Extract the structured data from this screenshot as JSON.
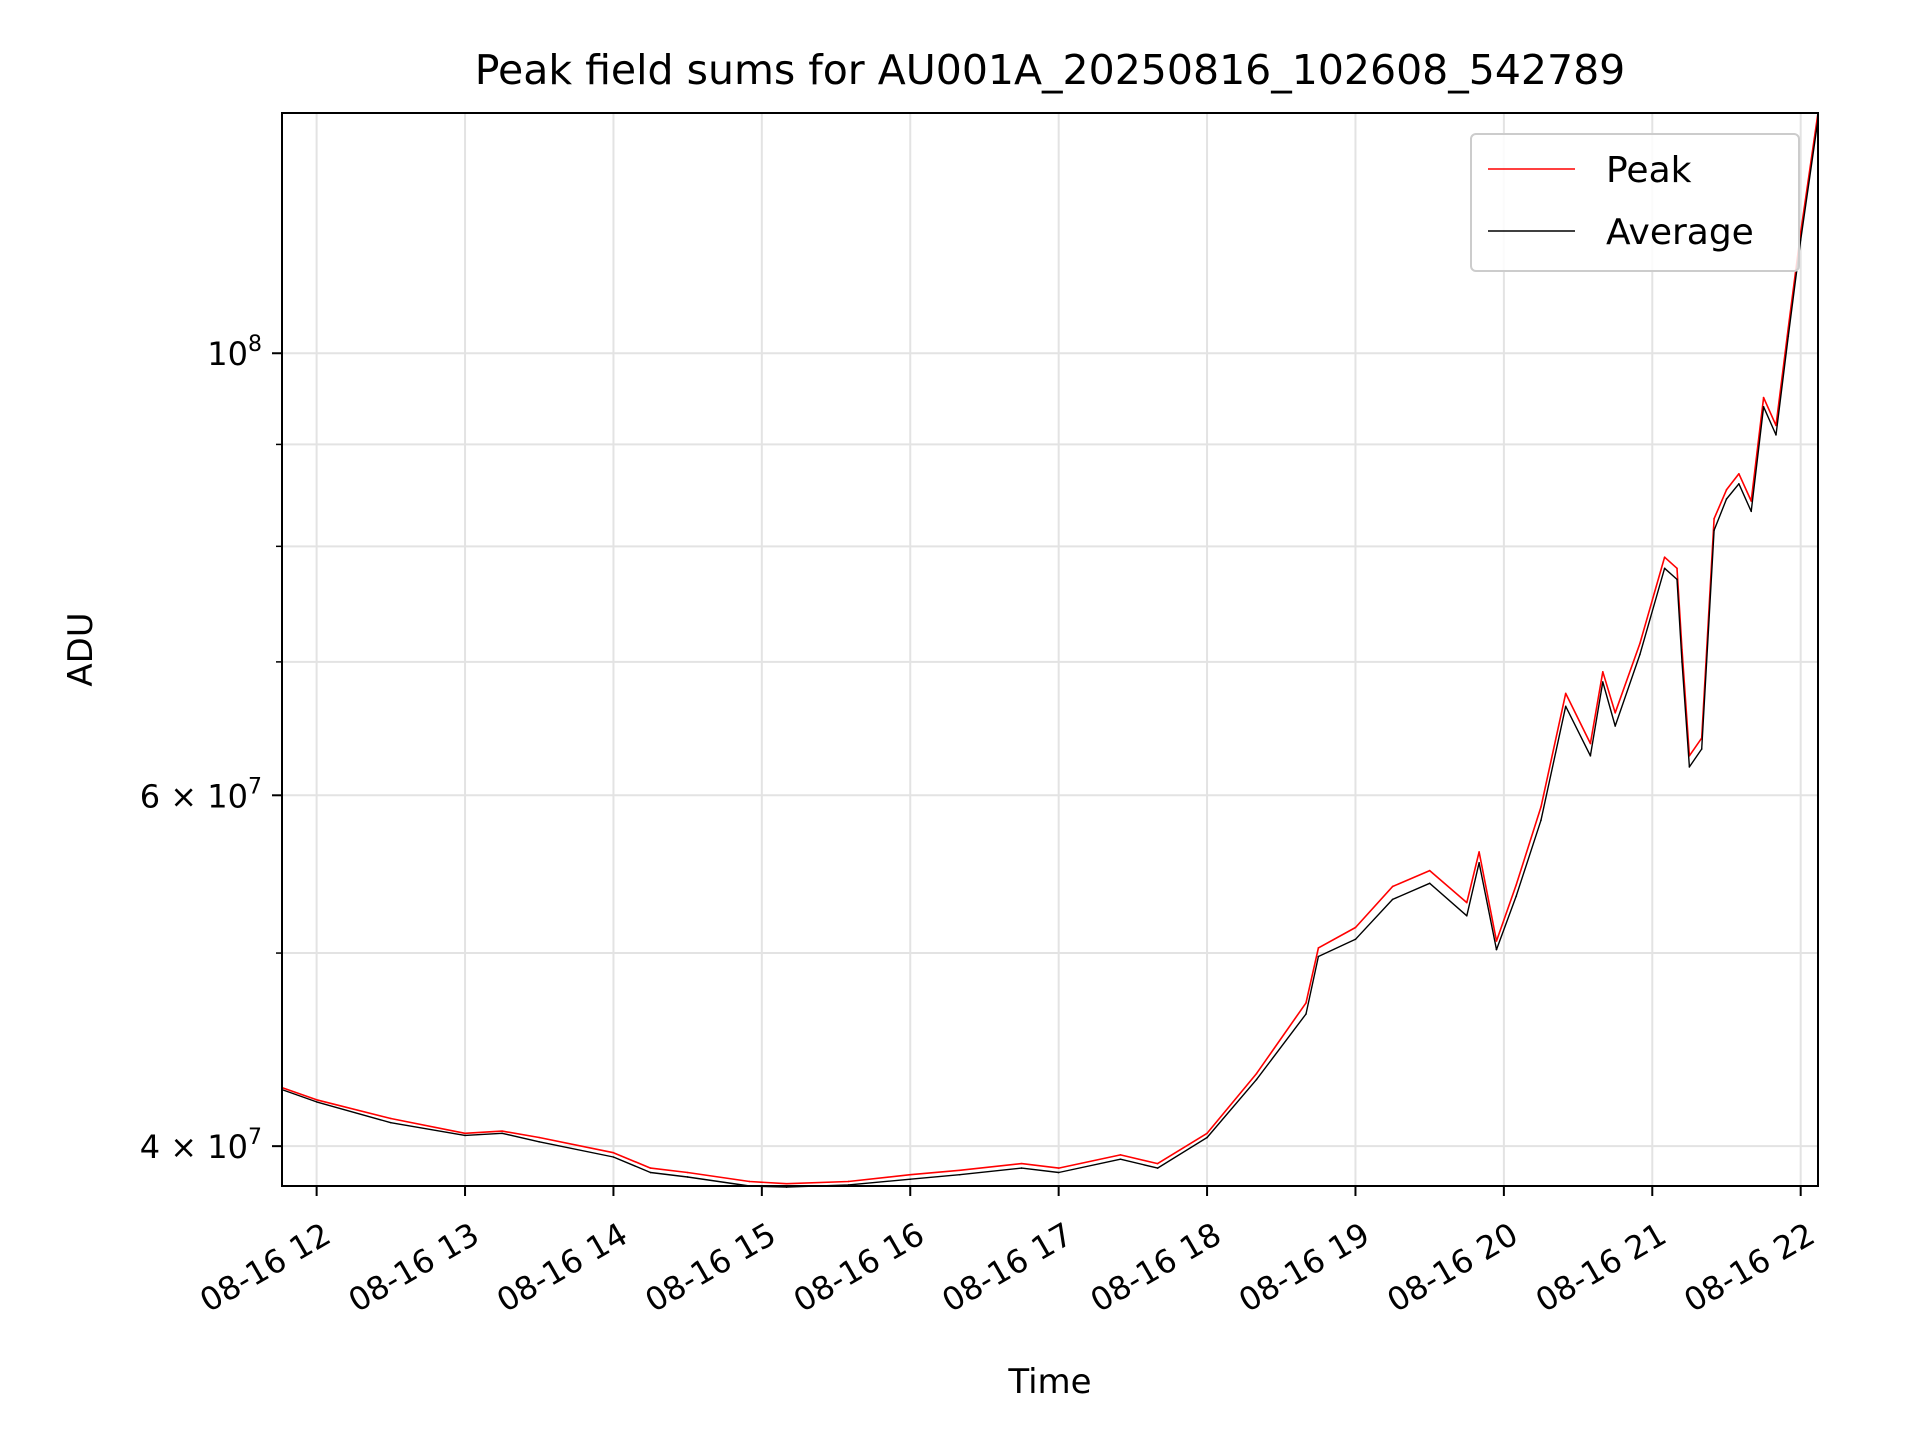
{
  "chart_data": {
    "type": "line",
    "title": "Peak field sums for AU001A_20250816_102608_542789",
    "xlabel": "Time",
    "ylabel": "ADU",
    "x_scale": "time",
    "y_scale": "log",
    "xlim": [
      "2025-08-16 11:46",
      "2025-08-16 22:07"
    ],
    "ylim": [
      38200000,
      132000000
    ],
    "grid": true,
    "legend_position": "top-right",
    "x_ticks": [
      {
        "value": "2025-08-16 12:00",
        "label": "08-16 12"
      },
      {
        "value": "2025-08-16 13:00",
        "label": "08-16 13"
      },
      {
        "value": "2025-08-16 14:00",
        "label": "08-16 14"
      },
      {
        "value": "2025-08-16 15:00",
        "label": "08-16 15"
      },
      {
        "value": "2025-08-16 16:00",
        "label": "08-16 16"
      },
      {
        "value": "2025-08-16 17:00",
        "label": "08-16 17"
      },
      {
        "value": "2025-08-16 18:00",
        "label": "08-16 18"
      },
      {
        "value": "2025-08-16 19:00",
        "label": "08-16 19"
      },
      {
        "value": "2025-08-16 20:00",
        "label": "08-16 20"
      },
      {
        "value": "2025-08-16 21:00",
        "label": "08-16 21"
      },
      {
        "value": "2025-08-16 22:00",
        "label": "08-16 22"
      }
    ],
    "y_ticks": [
      {
        "value": 40000000,
        "base": "4 × 10",
        "exp": "7"
      },
      {
        "value": 60000000,
        "base": "6 × 10",
        "exp": "7"
      },
      {
        "value": 100000000,
        "base": "10",
        "exp": "8"
      }
    ],
    "y_minor_ticks": [
      50000000,
      70000000,
      80000000,
      90000000
    ],
    "series": [
      {
        "name": "Peak",
        "color": "#ff0000",
        "x": [
          "2025-08-16 11:46",
          "2025-08-16 12:00",
          "2025-08-16 12:30",
          "2025-08-16 13:00",
          "2025-08-16 13:15",
          "2025-08-16 13:30",
          "2025-08-16 14:00",
          "2025-08-16 14:15",
          "2025-08-16 14:30",
          "2025-08-16 14:55",
          "2025-08-16 15:10",
          "2025-08-16 15:35",
          "2025-08-16 16:00",
          "2025-08-16 16:20",
          "2025-08-16 16:45",
          "2025-08-16 17:00",
          "2025-08-16 17:25",
          "2025-08-16 17:40",
          "2025-08-16 18:00",
          "2025-08-16 18:20",
          "2025-08-16 18:40",
          "2025-08-16 18:45",
          "2025-08-16 19:00",
          "2025-08-16 19:15",
          "2025-08-16 19:30",
          "2025-08-16 19:45",
          "2025-08-16 19:50",
          "2025-08-16 19:57",
          "2025-08-16 20:05",
          "2025-08-16 20:15",
          "2025-08-16 20:25",
          "2025-08-16 20:35",
          "2025-08-16 20:40",
          "2025-08-16 20:45",
          "2025-08-16 20:55",
          "2025-08-16 21:05",
          "2025-08-16 21:10",
          "2025-08-16 21:12",
          "2025-08-16 21:15",
          "2025-08-16 21:20",
          "2025-08-16 21:25",
          "2025-08-16 21:30",
          "2025-08-16 21:35",
          "2025-08-16 21:40",
          "2025-08-16 21:45",
          "2025-08-16 21:50",
          "2025-08-16 21:55",
          "2025-08-16 22:00",
          "2025-08-16 22:07"
        ],
        "values": [
          42800000,
          42200000,
          41300000,
          40600000,
          40700000,
          40400000,
          39700000,
          39000000,
          38800000,
          38400000,
          38300000,
          38400000,
          38700000,
          38900000,
          39200000,
          39000000,
          39600000,
          39200000,
          40600000,
          43500000,
          47200000,
          50300000,
          51500000,
          54000000,
          55000000,
          53000000,
          56200000,
          50700000,
          54100000,
          59200000,
          67500000,
          63700000,
          69200000,
          66000000,
          71500000,
          79000000,
          78000000,
          71000000,
          62800000,
          64100000,
          82600000,
          85400000,
          87000000,
          84300000,
          95000000,
          92000000,
          103000000,
          115000000,
          132000000
        ]
      },
      {
        "name": "Average",
        "color": "#000000",
        "x": [
          "2025-08-16 11:46",
          "2025-08-16 12:00",
          "2025-08-16 12:30",
          "2025-08-16 13:00",
          "2025-08-16 13:15",
          "2025-08-16 13:30",
          "2025-08-16 14:00",
          "2025-08-16 14:15",
          "2025-08-16 14:30",
          "2025-08-16 14:55",
          "2025-08-16 15:10",
          "2025-08-16 15:35",
          "2025-08-16 16:00",
          "2025-08-16 16:20",
          "2025-08-16 16:45",
          "2025-08-16 17:00",
          "2025-08-16 17:25",
          "2025-08-16 17:40",
          "2025-08-16 18:00",
          "2025-08-16 18:20",
          "2025-08-16 18:40",
          "2025-08-16 18:45",
          "2025-08-16 19:00",
          "2025-08-16 19:15",
          "2025-08-16 19:30",
          "2025-08-16 19:45",
          "2025-08-16 19:50",
          "2025-08-16 19:57",
          "2025-08-16 20:05",
          "2025-08-16 20:15",
          "2025-08-16 20:25",
          "2025-08-16 20:35",
          "2025-08-16 20:40",
          "2025-08-16 20:45",
          "2025-08-16 20:55",
          "2025-08-16 21:05",
          "2025-08-16 21:10",
          "2025-08-16 21:12",
          "2025-08-16 21:15",
          "2025-08-16 21:20",
          "2025-08-16 21:25",
          "2025-08-16 21:30",
          "2025-08-16 21:35",
          "2025-08-16 21:40",
          "2025-08-16 21:45",
          "2025-08-16 21:50",
          "2025-08-16 21:55",
          "2025-08-16 22:00",
          "2025-08-16 22:07"
        ],
        "values": [
          42700000,
          42100000,
          41100000,
          40500000,
          40600000,
          40200000,
          39500000,
          38800000,
          38600000,
          38200000,
          38150000,
          38250000,
          38500000,
          38700000,
          39000000,
          38800000,
          39400000,
          39000000,
          40400000,
          43200000,
          46600000,
          49800000,
          50800000,
          53200000,
          54200000,
          52200000,
          55500000,
          50200000,
          53400000,
          58300000,
          66500000,
          62800000,
          68400000,
          65000000,
          70600000,
          78000000,
          77000000,
          70000000,
          62000000,
          63300000,
          81500000,
          84500000,
          86000000,
          83300000,
          94000000,
          91000000,
          102000000,
          114000000,
          131000000
        ]
      }
    ]
  }
}
